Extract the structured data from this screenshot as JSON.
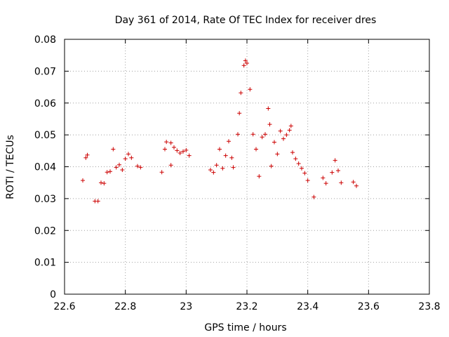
{
  "chart_data": {
    "type": "scatter",
    "title": "Day 361 of 2014, Rate Of TEC Index for receiver dres",
    "xlabel": "GPS time / hours",
    "ylabel": "ROTI / TECUs",
    "xlim": [
      22.6,
      23.8
    ],
    "ylim": [
      0,
      0.08
    ],
    "xticks": [
      "22.6",
      "22.8",
      "23",
      "23.2",
      "23.4",
      "23.6",
      "23.8"
    ],
    "yticks": [
      "0",
      "0.01",
      "0.02",
      "0.03",
      "0.04",
      "0.05",
      "0.06",
      "0.07",
      "0.08"
    ],
    "grid": true,
    "marker": "+",
    "series": [
      {
        "name": "ROTI",
        "color": "#cc0000",
        "points": [
          [
            22.66,
            0.0357
          ],
          [
            22.67,
            0.0428
          ],
          [
            22.675,
            0.0437
          ],
          [
            22.7,
            0.0292
          ],
          [
            22.71,
            0.0292
          ],
          [
            22.72,
            0.035
          ],
          [
            22.73,
            0.0348
          ],
          [
            22.74,
            0.0383
          ],
          [
            22.75,
            0.0385
          ],
          [
            22.76,
            0.0455
          ],
          [
            22.77,
            0.0398
          ],
          [
            22.78,
            0.0406
          ],
          [
            22.79,
            0.039
          ],
          [
            22.8,
            0.0425
          ],
          [
            22.81,
            0.044
          ],
          [
            22.82,
            0.0428
          ],
          [
            22.84,
            0.0402
          ],
          [
            22.85,
            0.0398
          ],
          [
            22.92,
            0.0383
          ],
          [
            22.93,
            0.0455
          ],
          [
            22.935,
            0.0478
          ],
          [
            22.95,
            0.0475
          ],
          [
            22.96,
            0.0461
          ],
          [
            22.97,
            0.0451
          ],
          [
            22.98,
            0.0443
          ],
          [
            22.99,
            0.0448
          ],
          [
            23.0,
            0.0452
          ],
          [
            23.01,
            0.0435
          ],
          [
            22.95,
            0.0405
          ],
          [
            23.08,
            0.039
          ],
          [
            23.09,
            0.0382
          ],
          [
            23.1,
            0.0405
          ],
          [
            23.11,
            0.0455
          ],
          [
            23.12,
            0.0395
          ],
          [
            23.13,
            0.0435
          ],
          [
            23.14,
            0.048
          ],
          [
            23.15,
            0.0428
          ],
          [
            23.155,
            0.0398
          ],
          [
            23.17,
            0.0502
          ],
          [
            23.175,
            0.0568
          ],
          [
            23.18,
            0.0632
          ],
          [
            23.19,
            0.0718
          ],
          [
            23.195,
            0.0733
          ],
          [
            23.2,
            0.0725
          ],
          [
            23.21,
            0.0643
          ],
          [
            23.22,
            0.0502
          ],
          [
            23.23,
            0.0455
          ],
          [
            23.24,
            0.037
          ],
          [
            23.25,
            0.0493
          ],
          [
            23.26,
            0.0502
          ],
          [
            23.27,
            0.0583
          ],
          [
            23.275,
            0.0533
          ],
          [
            23.28,
            0.0402
          ],
          [
            23.29,
            0.0477
          ],
          [
            23.3,
            0.044
          ],
          [
            23.31,
            0.0512
          ],
          [
            23.32,
            0.0488
          ],
          [
            23.33,
            0.05
          ],
          [
            23.34,
            0.0515
          ],
          [
            23.345,
            0.0528
          ],
          [
            23.35,
            0.0445
          ],
          [
            23.36,
            0.0425
          ],
          [
            23.37,
            0.041
          ],
          [
            23.38,
            0.0395
          ],
          [
            23.39,
            0.038
          ],
          [
            23.4,
            0.0357
          ],
          [
            23.42,
            0.0305
          ],
          [
            23.45,
            0.0365
          ],
          [
            23.46,
            0.0348
          ],
          [
            23.48,
            0.0382
          ],
          [
            23.49,
            0.042
          ],
          [
            23.5,
            0.0388
          ],
          [
            23.51,
            0.035
          ],
          [
            23.55,
            0.0352
          ],
          [
            23.56,
            0.034
          ]
        ]
      }
    ]
  }
}
